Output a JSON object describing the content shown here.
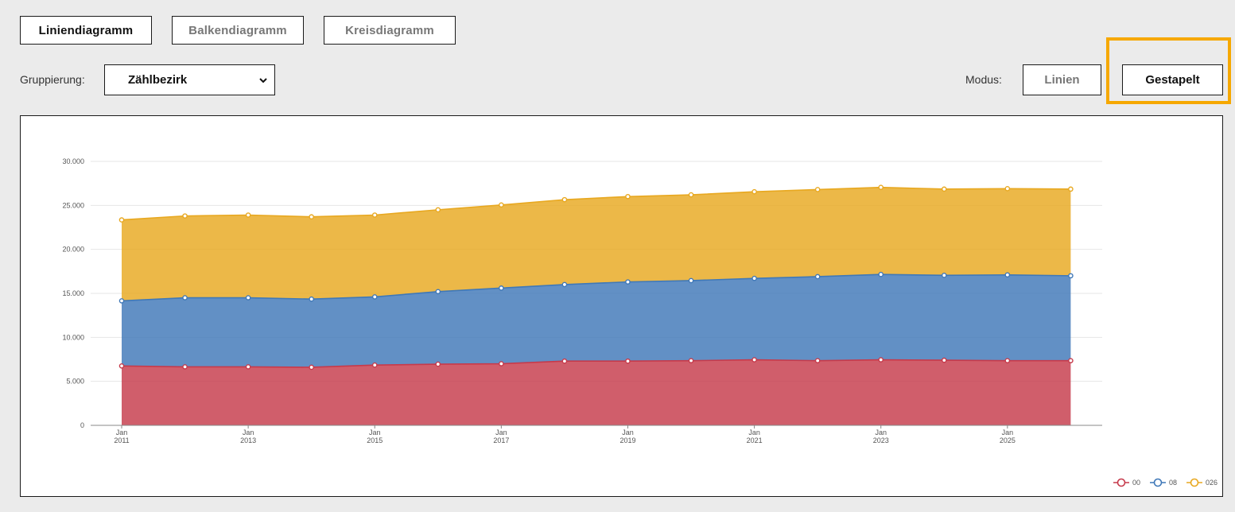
{
  "chart_tabs": [
    {
      "label": "Liniendiagramm",
      "active": true
    },
    {
      "label": "Balkendiagramm",
      "active": false
    },
    {
      "label": "Kreisdiagramm",
      "active": false
    }
  ],
  "grouping": {
    "label": "Gruppierung:",
    "selected": "Zählbezirk"
  },
  "mode": {
    "label": "Modus:",
    "options": [
      {
        "label": "Linien",
        "active": false
      },
      {
        "label": "Gestapelt",
        "active": true
      }
    ]
  },
  "colors": {
    "highlight": "#f6a800",
    "series_00": "#c63a4b",
    "series_08": "#3f78b8",
    "series_026": "#e8a820"
  },
  "chart_data": {
    "type": "area",
    "stacked": true,
    "x": [
      "Jan 2011",
      "Jan 2012",
      "Jan 2013",
      "Jan 2014",
      "Jan 2015",
      "Jan 2016",
      "Jan 2017",
      "Jan 2018",
      "Jan 2019",
      "Jan 2020",
      "Jan 2021",
      "Jan 2022",
      "Jan 2023",
      "Jan 2024",
      "Jan 2025",
      "Jan 2026"
    ],
    "x_tick_labels": [
      {
        "month": "Jan",
        "year": "2011"
      },
      {
        "month": "Jan",
        "year": "2013"
      },
      {
        "month": "Jan",
        "year": "2015"
      },
      {
        "month": "Jan",
        "year": "2017"
      },
      {
        "month": "Jan",
        "year": "2019"
      },
      {
        "month": "Jan",
        "year": "2021"
      },
      {
        "month": "Jan",
        "year": "2023"
      },
      {
        "month": "Jan",
        "year": "2025"
      }
    ],
    "y_ticks": [
      "0",
      "5.000",
      "10.000",
      "15.000",
      "20.000",
      "25.000",
      "30.000"
    ],
    "ylim": [
      0,
      30000
    ],
    "grid": true,
    "legend_position": "bottom-right",
    "series": [
      {
        "name": "00",
        "color": "#c63a4b",
        "values": [
          6750,
          6650,
          6650,
          6600,
          6850,
          6950,
          7000,
          7300,
          7300,
          7350,
          7450,
          7350,
          7450,
          7400,
          7350,
          7350
        ]
      },
      {
        "name": "08",
        "color": "#3f78b8",
        "values": [
          7400,
          7850,
          7850,
          7750,
          7750,
          8250,
          8600,
          8700,
          9000,
          9100,
          9250,
          9550,
          9700,
          9650,
          9750,
          9650
        ]
      },
      {
        "name": "026",
        "color": "#e8a820",
        "values": [
          9200,
          9300,
          9400,
          9350,
          9300,
          9300,
          9450,
          9650,
          9700,
          9750,
          9850,
          9900,
          9900,
          9800,
          9800,
          9850
        ]
      }
    ],
    "title": "",
    "xlabel": "",
    "ylabel": ""
  }
}
